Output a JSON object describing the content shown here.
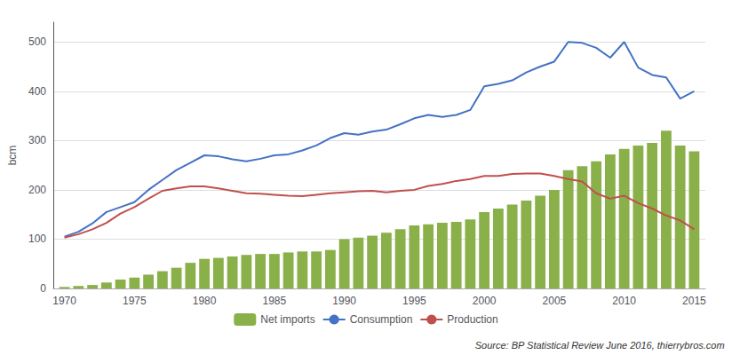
{
  "chart_data": {
    "type": "bar",
    "x": [
      1970,
      1971,
      1972,
      1973,
      1974,
      1975,
      1976,
      1977,
      1978,
      1979,
      1980,
      1981,
      1982,
      1983,
      1984,
      1985,
      1986,
      1987,
      1988,
      1989,
      1990,
      1991,
      1992,
      1993,
      1994,
      1995,
      1996,
      1997,
      1998,
      1999,
      2000,
      2001,
      2002,
      2003,
      2004,
      2005,
      2006,
      2007,
      2008,
      2009,
      2010,
      2011,
      2012,
      2013,
      2014,
      2015
    ],
    "series": [
      {
        "name": "Net imports",
        "type": "bar",
        "color": "#8ab04a",
        "values": [
          3,
          5,
          7,
          12,
          18,
          22,
          28,
          35,
          42,
          52,
          60,
          62,
          65,
          68,
          70,
          70,
          73,
          75,
          75,
          78,
          100,
          103,
          107,
          113,
          120,
          128,
          130,
          133,
          135,
          140,
          155,
          162,
          170,
          178,
          188,
          200,
          240,
          248,
          258,
          272,
          283,
          290,
          295,
          320,
          290,
          278
        ]
      },
      {
        "name": "Consumption",
        "type": "line",
        "color": "#4472c4",
        "values": [
          105,
          115,
          132,
          155,
          165,
          175,
          200,
          220,
          240,
          255,
          270,
          268,
          262,
          258,
          263,
          270,
          272,
          280,
          290,
          305,
          315,
          312,
          318,
          322,
          333,
          345,
          352,
          348,
          352,
          362,
          410,
          415,
          422,
          438,
          450,
          460,
          500,
          498,
          488,
          468,
          500,
          448,
          433,
          428,
          385,
          400
        ]
      },
      {
        "name": "Production",
        "type": "line",
        "color": "#c0504d",
        "values": [
          103,
          110,
          120,
          133,
          152,
          165,
          182,
          198,
          203,
          207,
          207,
          203,
          198,
          193,
          192,
          190,
          188,
          187,
          190,
          193,
          195,
          197,
          198,
          195,
          198,
          200,
          208,
          212,
          218,
          222,
          228,
          228,
          232,
          233,
          233,
          228,
          222,
          217,
          193,
          182,
          188,
          173,
          162,
          148,
          138,
          120
        ]
      }
    ],
    "ylabel": "bcm",
    "xlim": [
      1969.2,
      2015.8
    ],
    "xticks": [
      1970,
      1975,
      1980,
      1985,
      1990,
      1995,
      2000,
      2005,
      2010,
      2015
    ],
    "ylim": [
      0,
      540
    ],
    "yticks": [
      0,
      100,
      200,
      300,
      400,
      500
    ],
    "grid": true,
    "legend": "bottom",
    "annotations": [
      "Source: BP Statistical Review June 2016, thierrybros.com"
    ]
  }
}
